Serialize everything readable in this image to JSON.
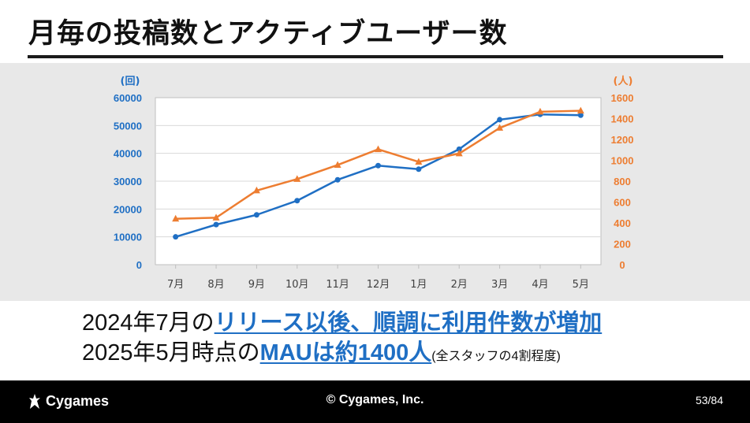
{
  "slide": {
    "title": "月毎の投稿数とアクティブユーザー数"
  },
  "summary": {
    "line1_prefix": "2024年7月の",
    "line1_highlight": "リリース以後、順調に利用件数が増加",
    "line2_prefix": "2025年5月時点の",
    "line2_highlight": "MAUは約1400人",
    "line2_note": "(全スタッフの4割程度)"
  },
  "footer": {
    "logo_text": "Cygames",
    "copyright": "© Cygames, Inc.",
    "page_number": "53",
    "page_total": "/84"
  },
  "chart_data": {
    "type": "line",
    "categories": [
      "7月",
      "8月",
      "9月",
      "10月",
      "11月",
      "12月",
      "1月",
      "2月",
      "3月",
      "4月",
      "5月"
    ],
    "y_left": {
      "unit_label": "(回)",
      "range": [
        0,
        60000
      ],
      "ticks": [
        0,
        10000,
        20000,
        30000,
        40000,
        50000,
        60000
      ],
      "color": "#1f6fc4"
    },
    "y_right": {
      "unit_label": "(人)",
      "range": [
        0,
        1600
      ],
      "ticks": [
        0,
        200,
        400,
        600,
        800,
        1000,
        1200,
        1400,
        1600
      ],
      "color": "#ed7d31"
    },
    "grid": true,
    "series": [
      {
        "axis": "left",
        "color": "#1f6fc4",
        "marker": "circle",
        "values": [
          10000,
          14400,
          17900,
          23000,
          30500,
          35600,
          34300,
          41500,
          52100,
          54000,
          53700
        ]
      },
      {
        "axis": "right",
        "color": "#ed7d31",
        "marker": "triangle",
        "values": [
          440,
          450,
          710,
          820,
          955,
          1105,
          985,
          1065,
          1310,
          1465,
          1475
        ]
      }
    ]
  }
}
